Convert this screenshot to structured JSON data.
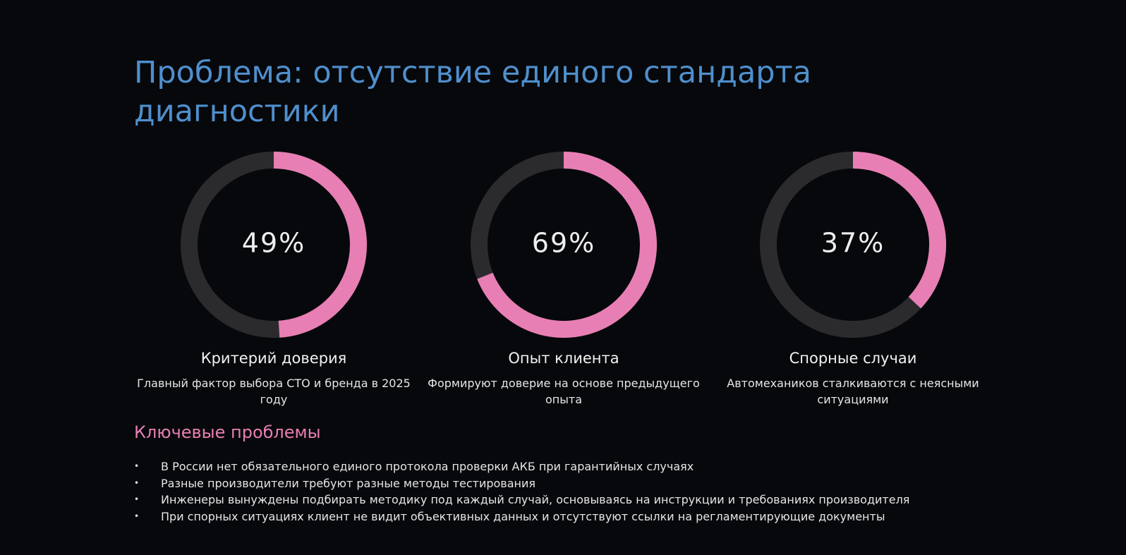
{
  "title": "Проблема: отсутствие единого стандарта диагностики",
  "chart_data": [
    {
      "type": "donut",
      "values": [
        49
      ],
      "value_labels": [
        "49%"
      ],
      "ylim": [
        0,
        100
      ],
      "color": "#e87fb4",
      "track_color": "#2b2b2e",
      "title": "Критерий доверия",
      "subtitle": "Главный фактор выбора СТО и бренда в 2025 году"
    },
    {
      "type": "donut",
      "values": [
        69
      ],
      "value_labels": [
        "69%"
      ],
      "ylim": [
        0,
        100
      ],
      "color": "#e87fb4",
      "track_color": "#2b2b2e",
      "title": "Опыт клиента",
      "subtitle": "Формируют доверие на основе предыдущего опыта"
    },
    {
      "type": "donut",
      "values": [
        37
      ],
      "value_labels": [
        "37%"
      ],
      "ylim": [
        0,
        100
      ],
      "color": "#e87fb4",
      "track_color": "#2b2b2e",
      "title": "Спорные случаи",
      "subtitle": "Автомехаников сталкиваются с неясными ситуациями"
    }
  ],
  "section_title": "Ключевые проблемы",
  "bullets": [
    "В России нет обязательного единого протокола проверки АКБ при гарантийных случаях",
    "Разные производители требуют разные методы тестирования",
    "Инженеры вынуждены подбирать методику под каждый случай, основываясь на инструкции и требованиях производителя",
    "При спорных ситуациях клиент не видит объективных данных и отсутствуют ссылки на регламентирующие документы"
  ]
}
